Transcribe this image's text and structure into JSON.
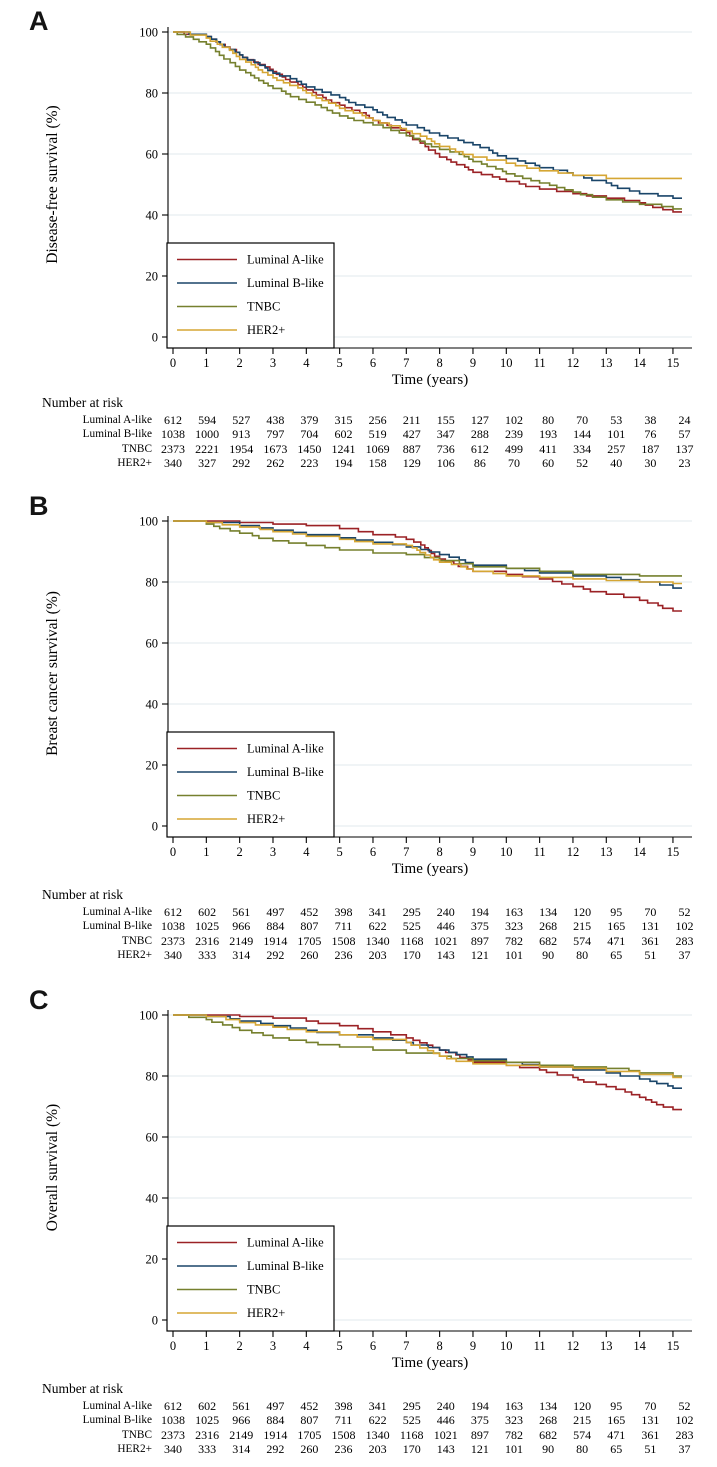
{
  "colors": {
    "luminal_a": "#9b2226",
    "luminal_b": "#1a4569",
    "tnbc": "#76802e",
    "her2": "#d5a634",
    "gridline": "#e0eaec",
    "axis": "#000000"
  },
  "legend_items": [
    "Luminal A-like",
    "Luminal B-like",
    "TNBC",
    "HER2+"
  ],
  "chart_data": [
    {
      "type": "line",
      "subtype": "kaplan-meier-step",
      "panel_label": "A",
      "ylabel": "Disease-free survival (%)",
      "xlabel": "Time (years)",
      "xlim": [
        0,
        15
      ],
      "ylim": [
        0,
        100
      ],
      "xticks": [
        0,
        1,
        2,
        3,
        4,
        5,
        6,
        7,
        8,
        9,
        10,
        11,
        12,
        13,
        14,
        15
      ],
      "yticks": [
        0,
        20,
        40,
        60,
        80,
        100
      ],
      "grid": true,
      "legend_position": "inside-lower-left-box",
      "series": [
        {
          "name": "Luminal A-like",
          "color": "#9b2226",
          "values": [
            100,
            98.5,
            92.5,
            87,
            81,
            76,
            71,
            67,
            59,
            54,
            51,
            48.5,
            47,
            45.5,
            44,
            41
          ]
        },
        {
          "name": "Luminal B-like",
          "color": "#1a4569",
          "values": [
            100,
            98.5,
            92.5,
            86.5,
            82,
            78.5,
            74.5,
            69.5,
            66,
            63,
            58.5,
            55.5,
            53,
            50.5,
            47,
            45.5
          ]
        },
        {
          "name": "TNBC",
          "color": "#76802e",
          "values": [
            100,
            96,
            87.5,
            81.5,
            77,
            72.5,
            69.5,
            66,
            61.5,
            57.5,
            53.5,
            50.5,
            47.5,
            45,
            43.5,
            42
          ]
        },
        {
          "name": "HER2+",
          "color": "#d5a634",
          "values": [
            100,
            98,
            91,
            85,
            80,
            75,
            71,
            67.5,
            62.5,
            59,
            57,
            54.5,
            53,
            52,
            52,
            52
          ]
        }
      ],
      "risk_table": {
        "title": "Number at risk",
        "time_points": [
          0,
          1,
          2,
          3,
          4,
          5,
          6,
          7,
          8,
          9,
          10,
          11,
          12,
          13,
          14,
          15
        ],
        "rows": [
          {
            "label": "Luminal A-like",
            "values": [
              612,
              594,
              527,
              438,
              379,
              315,
              256,
              211,
              155,
              127,
              102,
              80,
              70,
              53,
              38,
              24
            ]
          },
          {
            "label": "Luminal B-like",
            "values": [
              1038,
              1000,
              913,
              797,
              704,
              602,
              519,
              427,
              347,
              288,
              239,
              193,
              144,
              101,
              76,
              57
            ]
          },
          {
            "label": "TNBC",
            "values": [
              2373,
              2221,
              1954,
              1673,
              1450,
              1241,
              1069,
              887,
              736,
              612,
              499,
              411,
              334,
              257,
              187,
              137
            ]
          },
          {
            "label": "HER2+",
            "values": [
              340,
              327,
              292,
              262,
              223,
              194,
              158,
              129,
              106,
              86,
              70,
              60,
              52,
              40,
              30,
              23
            ]
          }
        ]
      }
    },
    {
      "type": "line",
      "subtype": "kaplan-meier-step",
      "panel_label": "B",
      "ylabel": "Breast cancer survival (%)",
      "xlabel": "Time (years)",
      "xlim": [
        0,
        15
      ],
      "ylim": [
        0,
        100
      ],
      "xticks": [
        0,
        1,
        2,
        3,
        4,
        5,
        6,
        7,
        8,
        9,
        10,
        11,
        12,
        13,
        14,
        15
      ],
      "yticks": [
        0,
        20,
        40,
        60,
        80,
        100
      ],
      "grid": true,
      "legend_position": "inside-lower-left-box",
      "series": [
        {
          "name": "Luminal A-like",
          "color": "#9b2226",
          "values": [
            100,
            100,
            99.5,
            99,
            98.5,
            97.5,
            95.5,
            94,
            87.5,
            83.5,
            82.5,
            81,
            78.5,
            76,
            74,
            70.5
          ]
        },
        {
          "name": "Luminal B-like",
          "color": "#1a4569",
          "values": [
            100,
            99.5,
            98.5,
            97,
            95.5,
            94.5,
            93,
            91.5,
            89,
            85.5,
            84.5,
            83,
            82,
            81.5,
            80,
            78
          ]
        },
        {
          "name": "TNBC",
          "color": "#76802e",
          "values": [
            100,
            99,
            96,
            93.5,
            92,
            90.5,
            89.5,
            89,
            87,
            85,
            84.5,
            83.5,
            82.5,
            82.5,
            82,
            82
          ]
        },
        {
          "name": "HER2+",
          "color": "#d5a634",
          "values": [
            100,
            99.5,
            98,
            96.5,
            95,
            94,
            92.5,
            92,
            86.5,
            83.5,
            82,
            81.5,
            81,
            80.5,
            80,
            79.5
          ]
        }
      ],
      "risk_table": {
        "title": "Number at risk",
        "time_points": [
          0,
          1,
          2,
          3,
          4,
          5,
          6,
          7,
          8,
          9,
          10,
          11,
          12,
          13,
          14,
          15
        ],
        "rows": [
          {
            "label": "Luminal A-like",
            "values": [
              612,
              602,
              561,
              497,
              452,
              398,
              341,
              295,
              240,
              194,
              163,
              134,
              120,
              95,
              70,
              52
            ]
          },
          {
            "label": "Luminal B-like",
            "values": [
              1038,
              1025,
              966,
              884,
              807,
              711,
              622,
              525,
              446,
              375,
              323,
              268,
              215,
              165,
              131,
              102
            ]
          },
          {
            "label": "TNBC",
            "values": [
              2373,
              2316,
              2149,
              1914,
              1705,
              1508,
              1340,
              1168,
              1021,
              897,
              782,
              682,
              574,
              471,
              361,
              283
            ]
          },
          {
            "label": "HER2+",
            "values": [
              340,
              333,
              314,
              292,
              260,
              236,
              203,
              170,
              143,
              121,
              101,
              90,
              80,
              65,
              51,
              37
            ]
          }
        ]
      }
    },
    {
      "type": "line",
      "subtype": "kaplan-meier-step",
      "panel_label": "C",
      "ylabel": "Overall survival (%)",
      "xlabel": "Time (years)",
      "xlim": [
        0,
        15
      ],
      "ylim": [
        0,
        100
      ],
      "xticks": [
        0,
        1,
        2,
        3,
        4,
        5,
        6,
        7,
        8,
        9,
        10,
        11,
        12,
        13,
        14,
        15
      ],
      "yticks": [
        0,
        20,
        40,
        60,
        80,
        100
      ],
      "grid": true,
      "legend_position": "inside-lower-left-box",
      "series": [
        {
          "name": "Luminal A-like",
          "color": "#9b2226",
          "values": [
            100,
            100,
            99.5,
            99,
            98,
            96.5,
            94.5,
            92.5,
            88.5,
            84.5,
            83.5,
            82,
            79.5,
            76.5,
            73,
            69
          ]
        },
        {
          "name": "Luminal B-like",
          "color": "#1a4569",
          "values": [
            100,
            99.5,
            98,
            96.5,
            95,
            93.5,
            92.5,
            91,
            88.5,
            85.5,
            84.5,
            83,
            82,
            81,
            79,
            76
          ]
        },
        {
          "name": "TNBC",
          "color": "#76802e",
          "values": [
            100,
            98.5,
            95,
            92.5,
            91,
            89.5,
            88.5,
            87.5,
            86.5,
            85,
            84.5,
            83.5,
            83,
            82.5,
            81,
            80
          ]
        },
        {
          "name": "HER2+",
          "color": "#d5a634",
          "values": [
            100,
            99.5,
            97.5,
            96,
            94.5,
            93.5,
            92,
            91,
            86.5,
            84,
            83.5,
            83,
            82.5,
            81.5,
            80.5,
            79.5
          ]
        }
      ],
      "risk_table": {
        "title": "Number at risk",
        "time_points": [
          0,
          1,
          2,
          3,
          4,
          5,
          6,
          7,
          8,
          9,
          10,
          11,
          12,
          13,
          14,
          15
        ],
        "rows": [
          {
            "label": "Luminal A-like",
            "values": [
              612,
              602,
              561,
              497,
              452,
              398,
              341,
              295,
              240,
              194,
              163,
              134,
              120,
              95,
              70,
              52
            ]
          },
          {
            "label": "Luminal B-like",
            "values": [
              1038,
              1025,
              966,
              884,
              807,
              711,
              622,
              525,
              446,
              375,
              323,
              268,
              215,
              165,
              131,
              102
            ]
          },
          {
            "label": "TNBC",
            "values": [
              2373,
              2316,
              2149,
              1914,
              1705,
              1508,
              1340,
              1168,
              1021,
              897,
              782,
              682,
              574,
              471,
              361,
              283
            ]
          },
          {
            "label": "HER2+",
            "values": [
              340,
              333,
              314,
              292,
              260,
              236,
              203,
              170,
              143,
              121,
              101,
              90,
              80,
              65,
              51,
              37
            ]
          }
        ]
      }
    }
  ]
}
